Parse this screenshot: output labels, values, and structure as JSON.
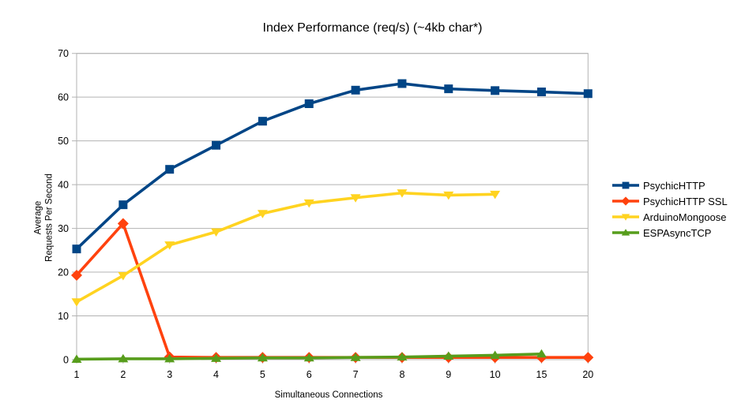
{
  "chart_data": {
    "type": "line",
    "title": "Index Performance (req/s) (~4kb char*)",
    "xlabel": "Simultaneous Connections",
    "ylabel": "Average\nRequests Per Second",
    "categories": [
      "1",
      "2",
      "3",
      "4",
      "5",
      "6",
      "7",
      "8",
      "9",
      "10",
      "15",
      "20"
    ],
    "y_ticks": [
      0,
      10,
      20,
      30,
      40,
      50,
      60,
      70
    ],
    "ylim": [
      0,
      70
    ],
    "grid": "horizontal",
    "legend_position": "right",
    "colors": {
      "plot_border": "#b3b3b3",
      "grid": "#b3b3b3",
      "text": "#000000",
      "background": "#ffffff"
    },
    "series": [
      {
        "name": "PsychicHTTP",
        "color": "#004586",
        "marker": "square",
        "values": [
          25.3,
          35.4,
          43.5,
          49.0,
          54.5,
          58.5,
          61.6,
          63.1,
          61.9,
          61.5,
          61.2,
          60.8
        ]
      },
      {
        "name": "PsychicHTTP SSL",
        "color": "#ff420e",
        "marker": "diamond",
        "values": [
          19.3,
          31.1,
          0.6,
          0.5,
          0.5,
          0.5,
          0.5,
          0.5,
          0.5,
          0.5,
          0.5,
          0.5
        ]
      },
      {
        "name": "ArduinoMongoose",
        "color": "#ffd320",
        "marker": "triangle-down",
        "values": [
          13.2,
          19.2,
          26.2,
          29.2,
          33.4,
          35.8,
          37.0,
          38.1,
          37.6,
          37.8,
          null,
          null
        ]
      },
      {
        "name": "ESPAsyncTCP",
        "color": "#579d1c",
        "marker": "triangle-up",
        "values": [
          0.1,
          0.2,
          0.2,
          0.3,
          0.4,
          0.4,
          0.5,
          0.6,
          0.8,
          1.0,
          1.3,
          null
        ]
      }
    ]
  }
}
